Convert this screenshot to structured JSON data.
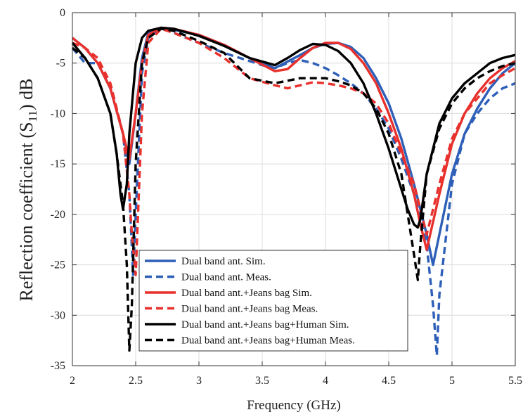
{
  "chart_data": {
    "type": "line",
    "title": "",
    "xlabel": "Frequency (GHz)",
    "ylabel_main": "Reflection coefficient (S",
    "ylabel_sub": "11",
    "ylabel_tail": ") dB",
    "xlim": [
      2,
      5.5
    ],
    "ylim": [
      -35,
      0
    ],
    "xticks": [
      2,
      2.5,
      3,
      3.5,
      4,
      4.5,
      5,
      5.5
    ],
    "yticks": [
      0,
      -5,
      -10,
      -15,
      -20,
      -25,
      -30,
      -35
    ],
    "xtick_labels": [
      "2",
      "2.5",
      "3",
      "3.5",
      "4",
      "4.5",
      "5",
      "5.5"
    ],
    "ytick_labels": [
      "0",
      "-5",
      "-10",
      "-15",
      "-20",
      "-25",
      "-30",
      "-35"
    ],
    "grid": true,
    "legend_position": "bottom-center",
    "series": [
      {
        "name": "Dual band ant. Sim.",
        "color": "#2e5fb8",
        "dash": "solid",
        "x": [
          2.0,
          2.1,
          2.2,
          2.3,
          2.4,
          2.45,
          2.5,
          2.55,
          2.6,
          2.7,
          2.8,
          3.0,
          3.2,
          3.4,
          3.6,
          3.8,
          3.9,
          4.0,
          4.1,
          4.2,
          4.3,
          4.4,
          4.5,
          4.6,
          4.7,
          4.8,
          4.85,
          4.9,
          5.0,
          5.1,
          5.2,
          5.3,
          5.4,
          5.5
        ],
        "y": [
          -2.5,
          -3.5,
          -5.0,
          -7.5,
          -12.0,
          -15.0,
          -10.0,
          -4.5,
          -2.0,
          -1.5,
          -1.7,
          -2.2,
          -3.2,
          -4.5,
          -5.5,
          -4.2,
          -3.5,
          -3.1,
          -3.0,
          -3.4,
          -4.5,
          -6.5,
          -9.0,
          -12.5,
          -17.0,
          -22.0,
          -25.0,
          -22.0,
          -16.0,
          -12.0,
          -9.5,
          -7.5,
          -6.0,
          -5.0
        ]
      },
      {
        "name": "Dual band ant. Meas.",
        "color": "#2e5fb8",
        "dash": "dashed",
        "x": [
          2.0,
          2.1,
          2.2,
          2.3,
          2.4,
          2.45,
          2.48,
          2.5,
          2.55,
          2.6,
          2.7,
          2.8,
          3.0,
          3.2,
          3.4,
          3.5,
          3.6,
          3.7,
          3.8,
          3.9,
          4.0,
          4.1,
          4.2,
          4.3,
          4.4,
          4.5,
          4.6,
          4.7,
          4.8,
          4.85,
          4.88,
          4.9,
          5.0,
          5.1,
          5.2,
          5.3,
          5.4,
          5.5
        ],
        "y": [
          -3.5,
          -5.0,
          -5.0,
          -7.5,
          -12.0,
          -18.0,
          -26.0,
          -20.0,
          -6.0,
          -2.5,
          -1.5,
          -2.0,
          -3.0,
          -4.0,
          -4.8,
          -5.2,
          -5.5,
          -5.0,
          -4.7,
          -5.0,
          -5.5,
          -6.2,
          -7.0,
          -8.0,
          -9.5,
          -11.5,
          -14.5,
          -18.0,
          -23.0,
          -29.0,
          -34.0,
          -28.0,
          -17.0,
          -12.0,
          -10.0,
          -8.5,
          -7.5,
          -7.0
        ]
      },
      {
        "name": "Dual band ant.+Jeans bag Sim.",
        "color": "#e8302c",
        "dash": "solid",
        "x": [
          2.0,
          2.1,
          2.2,
          2.3,
          2.4,
          2.45,
          2.5,
          2.55,
          2.6,
          2.7,
          2.8,
          3.0,
          3.2,
          3.4,
          3.6,
          3.7,
          3.8,
          3.9,
          4.0,
          4.1,
          4.2,
          4.3,
          4.4,
          4.5,
          4.6,
          4.7,
          4.75,
          4.8,
          4.9,
          5.0,
          5.1,
          5.2,
          5.3,
          5.4,
          5.5
        ],
        "y": [
          -2.5,
          -3.5,
          -5.0,
          -7.5,
          -12.0,
          -14.5,
          -10.0,
          -5.0,
          -2.2,
          -1.5,
          -1.6,
          -2.2,
          -3.2,
          -4.5,
          -5.8,
          -5.6,
          -4.5,
          -3.5,
          -3.0,
          -3.0,
          -3.6,
          -5.0,
          -7.0,
          -10.0,
          -13.5,
          -18.0,
          -21.0,
          -23.5,
          -18.0,
          -13.0,
          -10.0,
          -8.0,
          -6.5,
          -5.5,
          -4.8
        ]
      },
      {
        "name": "Dual band ant.+Jeans bag Meas.",
        "color": "#e8302c",
        "dash": "dashed",
        "x": [
          2.0,
          2.1,
          2.2,
          2.3,
          2.4,
          2.45,
          2.47,
          2.5,
          2.55,
          2.6,
          2.7,
          2.8,
          3.0,
          3.2,
          3.4,
          3.6,
          3.7,
          3.8,
          3.9,
          4.0,
          4.1,
          4.2,
          4.3,
          4.4,
          4.5,
          4.6,
          4.7,
          4.75,
          4.8,
          4.9,
          5.0,
          5.1,
          5.2,
          5.3,
          5.4,
          5.5
        ],
        "y": [
          -3.0,
          -3.5,
          -4.5,
          -7.0,
          -12.0,
          -18.0,
          -22.0,
          -26.0,
          -10.0,
          -3.0,
          -1.6,
          -2.0,
          -3.0,
          -4.5,
          -6.5,
          -7.2,
          -7.5,
          -7.2,
          -6.9,
          -7.0,
          -7.2,
          -7.5,
          -8.0,
          -9.0,
          -11.0,
          -14.0,
          -17.0,
          -19.5,
          -22.0,
          -17.0,
          -12.5,
          -10.0,
          -8.5,
          -7.0,
          -6.2,
          -5.5
        ]
      },
      {
        "name": "Dual band ant.+Jeans bag+Human Sim.",
        "color": "#000000",
        "dash": "solid",
        "x": [
          2.0,
          2.1,
          2.2,
          2.3,
          2.35,
          2.38,
          2.4,
          2.43,
          2.45,
          2.5,
          2.55,
          2.6,
          2.7,
          2.8,
          3.0,
          3.2,
          3.4,
          3.6,
          3.7,
          3.8,
          3.9,
          4.0,
          4.1,
          4.2,
          4.3,
          4.4,
          4.5,
          4.6,
          4.65,
          4.7,
          4.73,
          4.75,
          4.8,
          4.9,
          5.0,
          5.1,
          5.2,
          5.3,
          5.4,
          5.5
        ],
        "y": [
          -3.0,
          -4.5,
          -6.5,
          -10.0,
          -14.0,
          -18.0,
          -19.5,
          -17.0,
          -12.0,
          -5.0,
          -2.5,
          -1.8,
          -1.5,
          -1.6,
          -2.3,
          -3.3,
          -4.5,
          -5.2,
          -4.5,
          -3.7,
          -3.1,
          -3.2,
          -3.8,
          -5.0,
          -7.0,
          -10.0,
          -13.5,
          -17.5,
          -19.5,
          -21.0,
          -21.3,
          -20.5,
          -16.0,
          -11.0,
          -8.5,
          -7.0,
          -6.0,
          -5.0,
          -4.5,
          -4.2
        ]
      },
      {
        "name": "Dual band ant.+Jeans bag+Human Meas.",
        "color": "#000000",
        "dash": "dashed",
        "x": [
          2.0,
          2.1,
          2.2,
          2.3,
          2.35,
          2.4,
          2.43,
          2.45,
          2.47,
          2.5,
          2.55,
          2.6,
          2.7,
          2.8,
          3.0,
          3.2,
          3.4,
          3.6,
          3.8,
          3.9,
          4.0,
          4.1,
          4.2,
          4.3,
          4.4,
          4.5,
          4.6,
          4.65,
          4.7,
          4.73,
          4.75,
          4.8,
          4.9,
          5.0,
          5.1,
          5.2,
          5.3,
          5.4,
          5.5
        ],
        "y": [
          -3.5,
          -4.5,
          -6.5,
          -10.0,
          -14.0,
          -19.0,
          -25.0,
          -33.5,
          -29.0,
          -15.0,
          -5.0,
          -2.5,
          -1.6,
          -1.8,
          -2.8,
          -4.0,
          -6.5,
          -7.0,
          -6.5,
          -6.5,
          -6.5,
          -6.8,
          -7.2,
          -8.0,
          -9.5,
          -12.0,
          -16.0,
          -20.0,
          -24.0,
          -26.5,
          -23.0,
          -16.0,
          -11.5,
          -9.0,
          -7.5,
          -6.5,
          -5.8,
          -5.3,
          -5.0
        ]
      }
    ]
  }
}
